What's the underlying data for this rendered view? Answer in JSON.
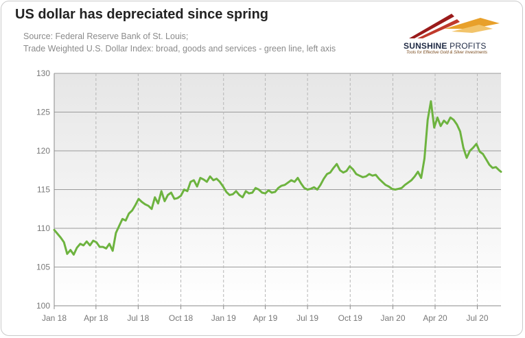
{
  "header": {
    "title": "US dollar has depreciated since spring",
    "source_line1": "Source: Federal Reserve Bank of St. Louis;",
    "source_line2": "Trade Weighted U.S. Dollar Index: broad, goods and services - green line, left axis"
  },
  "logo": {
    "name_bold": "SUNSHINE",
    "name_light": " PROFITS",
    "tagline": "Tools for Effective Gold & Silver Investments",
    "colors": {
      "stripe_dark": "#9a1b1b",
      "stripe_mid": "#c0392b",
      "stripe_light": "#e8a02a"
    }
  },
  "chart_data": {
    "type": "line",
    "title": "US dollar has depreciated since spring",
    "xlabel": "",
    "ylabel": "",
    "xlim": [
      "2018-01-01",
      "2020-08-21"
    ],
    "ylim": [
      100,
      130
    ],
    "yticks": [
      100,
      105,
      110,
      115,
      120,
      125,
      130
    ],
    "xticks": [
      {
        "date": "2018-01-01",
        "label": "Jan 18"
      },
      {
        "date": "2018-04-01",
        "label": "Apr 18"
      },
      {
        "date": "2018-07-01",
        "label": "Jul 18"
      },
      {
        "date": "2018-10-01",
        "label": "Oct 18"
      },
      {
        "date": "2019-01-01",
        "label": "Jan 19"
      },
      {
        "date": "2019-04-01",
        "label": "Apr 19"
      },
      {
        "date": "2019-07-01",
        "label": "Jul 19"
      },
      {
        "date": "2019-10-01",
        "label": "Oct 19"
      },
      {
        "date": "2020-01-01",
        "label": "Jan 20"
      },
      {
        "date": "2020-04-01",
        "label": "Apr 20"
      },
      {
        "date": "2020-07-01",
        "label": "Jul 20"
      }
    ],
    "grid": true,
    "line_color": "#6db33f",
    "series": [
      {
        "name": "",
        "points": [
          [
            "2018-01-01",
            109.8
          ],
          [
            "2018-01-08",
            109.3
          ],
          [
            "2018-01-15",
            108.8
          ],
          [
            "2018-01-22",
            108.2
          ],
          [
            "2018-01-29",
            106.7
          ],
          [
            "2018-02-05",
            107.2
          ],
          [
            "2018-02-12",
            106.6
          ],
          [
            "2018-02-19",
            107.5
          ],
          [
            "2018-02-26",
            108.0
          ],
          [
            "2018-03-05",
            107.8
          ],
          [
            "2018-03-12",
            108.3
          ],
          [
            "2018-03-19",
            107.8
          ],
          [
            "2018-03-26",
            108.4
          ],
          [
            "2018-04-02",
            108.2
          ],
          [
            "2018-04-09",
            107.6
          ],
          [
            "2018-04-16",
            107.6
          ],
          [
            "2018-04-23",
            107.4
          ],
          [
            "2018-04-30",
            108.0
          ],
          [
            "2018-05-07",
            107.1
          ],
          [
            "2018-05-14",
            109.4
          ],
          [
            "2018-05-21",
            110.3
          ],
          [
            "2018-05-28",
            111.2
          ],
          [
            "2018-06-04",
            111.0
          ],
          [
            "2018-06-11",
            111.9
          ],
          [
            "2018-06-18",
            112.3
          ],
          [
            "2018-06-25",
            113.0
          ],
          [
            "2018-07-02",
            113.8
          ],
          [
            "2018-07-09",
            113.4
          ],
          [
            "2018-07-16",
            113.1
          ],
          [
            "2018-07-23",
            112.9
          ],
          [
            "2018-07-30",
            112.5
          ],
          [
            "2018-08-06",
            114.0
          ],
          [
            "2018-08-13",
            113.2
          ],
          [
            "2018-08-20",
            114.8
          ],
          [
            "2018-08-27",
            113.5
          ],
          [
            "2018-09-03",
            114.3
          ],
          [
            "2018-09-10",
            114.6
          ],
          [
            "2018-09-17",
            113.8
          ],
          [
            "2018-09-24",
            113.9
          ],
          [
            "2018-10-01",
            114.2
          ],
          [
            "2018-10-08",
            115.0
          ],
          [
            "2018-10-15",
            114.8
          ],
          [
            "2018-10-22",
            116.0
          ],
          [
            "2018-10-29",
            116.2
          ],
          [
            "2018-11-05",
            115.4
          ],
          [
            "2018-11-12",
            116.5
          ],
          [
            "2018-11-19",
            116.3
          ],
          [
            "2018-11-26",
            116.0
          ],
          [
            "2018-12-03",
            116.7
          ],
          [
            "2018-12-10",
            116.2
          ],
          [
            "2018-12-17",
            116.4
          ],
          [
            "2018-12-24",
            116.0
          ],
          [
            "2018-12-31",
            115.4
          ],
          [
            "2019-01-07",
            114.7
          ],
          [
            "2019-01-14",
            114.3
          ],
          [
            "2019-01-21",
            114.4
          ],
          [
            "2019-01-28",
            114.8
          ],
          [
            "2019-02-04",
            114.3
          ],
          [
            "2019-02-11",
            114.0
          ],
          [
            "2019-02-18",
            114.8
          ],
          [
            "2019-02-25",
            114.5
          ],
          [
            "2019-03-04",
            114.6
          ],
          [
            "2019-03-11",
            115.2
          ],
          [
            "2019-03-18",
            115.0
          ],
          [
            "2019-03-25",
            114.6
          ],
          [
            "2019-04-01",
            114.5
          ],
          [
            "2019-04-08",
            114.9
          ],
          [
            "2019-04-15",
            114.6
          ],
          [
            "2019-04-22",
            114.7
          ],
          [
            "2019-04-29",
            115.2
          ],
          [
            "2019-05-06",
            115.5
          ],
          [
            "2019-05-13",
            115.6
          ],
          [
            "2019-05-20",
            115.9
          ],
          [
            "2019-05-27",
            116.2
          ],
          [
            "2019-06-03",
            116.0
          ],
          [
            "2019-06-10",
            116.5
          ],
          [
            "2019-06-17",
            115.8
          ],
          [
            "2019-06-24",
            115.2
          ],
          [
            "2019-07-01",
            115.0
          ],
          [
            "2019-07-08",
            115.1
          ],
          [
            "2019-07-15",
            115.3
          ],
          [
            "2019-07-22",
            115.0
          ],
          [
            "2019-07-29",
            115.6
          ],
          [
            "2019-08-05",
            116.4
          ],
          [
            "2019-08-12",
            117.0
          ],
          [
            "2019-08-19",
            117.2
          ],
          [
            "2019-08-26",
            117.8
          ],
          [
            "2019-09-02",
            118.3
          ],
          [
            "2019-09-09",
            117.5
          ],
          [
            "2019-09-16",
            117.2
          ],
          [
            "2019-09-23",
            117.4
          ],
          [
            "2019-09-30",
            118.0
          ],
          [
            "2019-10-07",
            117.6
          ],
          [
            "2019-10-14",
            117.0
          ],
          [
            "2019-10-21",
            116.8
          ],
          [
            "2019-10-28",
            116.6
          ],
          [
            "2019-11-04",
            116.7
          ],
          [
            "2019-11-11",
            117.0
          ],
          [
            "2019-11-18",
            116.8
          ],
          [
            "2019-11-25",
            116.9
          ],
          [
            "2019-12-02",
            116.4
          ],
          [
            "2019-12-09",
            116.0
          ],
          [
            "2019-12-16",
            115.6
          ],
          [
            "2019-12-23",
            115.4
          ],
          [
            "2019-12-30",
            115.1
          ],
          [
            "2020-01-06",
            115.0
          ],
          [
            "2020-01-13",
            115.1
          ],
          [
            "2020-01-20",
            115.2
          ],
          [
            "2020-01-27",
            115.6
          ],
          [
            "2020-02-03",
            115.9
          ],
          [
            "2020-02-10",
            116.2
          ],
          [
            "2020-02-17",
            116.7
          ],
          [
            "2020-02-24",
            117.3
          ],
          [
            "2020-03-02",
            116.5
          ],
          [
            "2020-03-09",
            119.0
          ],
          [
            "2020-03-16",
            124.0
          ],
          [
            "2020-03-23",
            126.4
          ],
          [
            "2020-03-30",
            123.0
          ],
          [
            "2020-04-06",
            124.3
          ],
          [
            "2020-04-13",
            123.2
          ],
          [
            "2020-04-20",
            123.9
          ],
          [
            "2020-04-27",
            123.5
          ],
          [
            "2020-05-04",
            124.3
          ],
          [
            "2020-05-11",
            124.0
          ],
          [
            "2020-05-18",
            123.4
          ],
          [
            "2020-05-25",
            122.5
          ],
          [
            "2020-06-01",
            120.4
          ],
          [
            "2020-06-08",
            119.1
          ],
          [
            "2020-06-15",
            120.0
          ],
          [
            "2020-06-22",
            120.4
          ],
          [
            "2020-06-29",
            120.9
          ],
          [
            "2020-07-06",
            119.9
          ],
          [
            "2020-07-13",
            119.6
          ],
          [
            "2020-07-20",
            118.9
          ],
          [
            "2020-07-27",
            118.2
          ],
          [
            "2020-08-03",
            117.8
          ],
          [
            "2020-08-10",
            117.9
          ],
          [
            "2020-08-17",
            117.5
          ],
          [
            "2020-08-21",
            117.3
          ]
        ]
      }
    ]
  }
}
